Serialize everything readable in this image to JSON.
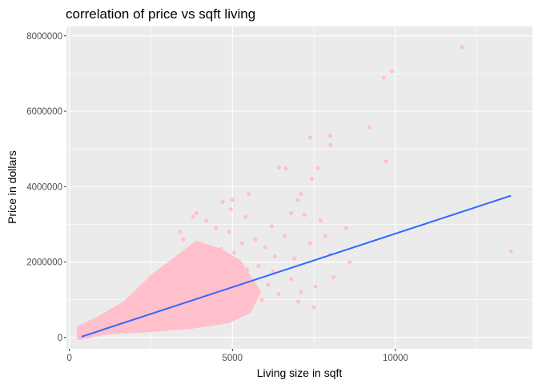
{
  "chart_data": {
    "type": "scatter",
    "title": "correlation of price vs sqft living",
    "xlabel": "Living size in sqft",
    "ylabel": "Price in dollars",
    "xlim": [
      -90,
      14200
    ],
    "ylim": [
      -300000,
      8250000
    ],
    "x_ticks": [
      0,
      5000,
      10000
    ],
    "x_tick_labels": [
      "0",
      "5000",
      "10000"
    ],
    "y_ticks": [
      0,
      2000000,
      4000000,
      6000000,
      8000000
    ],
    "y_tick_labels": [
      "0",
      "2000000",
      "4000000",
      "6000000",
      "8000000"
    ],
    "grid": true,
    "legend": "none",
    "colors": {
      "panel": "#ebebeb",
      "grid": "#ffffff",
      "points": "#ffc0cb",
      "trend_line": "#3366ff",
      "tick_label": "#4d4d4d"
    },
    "series": [
      {
        "kind": "points",
        "points": [
          [
            12050,
            7700000
          ],
          [
            9890,
            7060000
          ],
          [
            9640,
            6890000
          ],
          [
            9200,
            5570000
          ],
          [
            7390,
            5300000
          ],
          [
            8000,
            5350000
          ],
          [
            8010,
            5110000
          ],
          [
            9710,
            4670000
          ],
          [
            7620,
            4490000
          ],
          [
            6430,
            4500000
          ],
          [
            6640,
            4480000
          ],
          [
            7440,
            4210000
          ],
          [
            7100,
            3800000
          ],
          [
            7000,
            3650000
          ],
          [
            5500,
            3800000
          ],
          [
            5000,
            3650000
          ],
          [
            4950,
            3400000
          ],
          [
            5400,
            3200000
          ],
          [
            6800,
            3300000
          ],
          [
            7200,
            3250000
          ],
          [
            7700,
            3100000
          ],
          [
            8490,
            2900000
          ],
          [
            7850,
            2700000
          ],
          [
            6200,
            2950000
          ],
          [
            6600,
            2700000
          ],
          [
            8000,
            2200000
          ],
          [
            8100,
            1600000
          ],
          [
            7550,
            1350000
          ],
          [
            7100,
            1200000
          ],
          [
            7500,
            800000
          ],
          [
            7020,
            950000
          ],
          [
            6800,
            1550000
          ],
          [
            6900,
            2100000
          ],
          [
            5800,
            1900000
          ],
          [
            6300,
            2150000
          ],
          [
            13540,
            2280000
          ],
          [
            7380,
            2500000
          ],
          [
            6100,
            1400000
          ],
          [
            5900,
            1000000
          ],
          [
            6420,
            1150000
          ],
          [
            4900,
            2800000
          ],
          [
            4500,
            2900000
          ],
          [
            4200,
            3100000
          ],
          [
            3800,
            3200000
          ],
          [
            4700,
            3600000
          ],
          [
            5700,
            2600000
          ],
          [
            5300,
            2500000
          ],
          [
            6000,
            2400000
          ],
          [
            5600,
            1500000
          ],
          [
            5250,
            1250000
          ],
          [
            4800,
            850000
          ],
          [
            4400,
            750000
          ],
          [
            3900,
            3300000
          ],
          [
            3500,
            2600000
          ],
          [
            3400,
            2800000
          ],
          [
            8600,
            2000000
          ],
          [
            6250,
            1750000
          ],
          [
            5450,
            1800000
          ],
          [
            5050,
            2250000
          ],
          [
            4650,
            2350000
          ]
        ]
      },
      {
        "kind": "trend_line",
        "points": [
          [
            370,
            20000
          ],
          [
            13540,
            3760000
          ]
        ]
      }
    ]
  }
}
